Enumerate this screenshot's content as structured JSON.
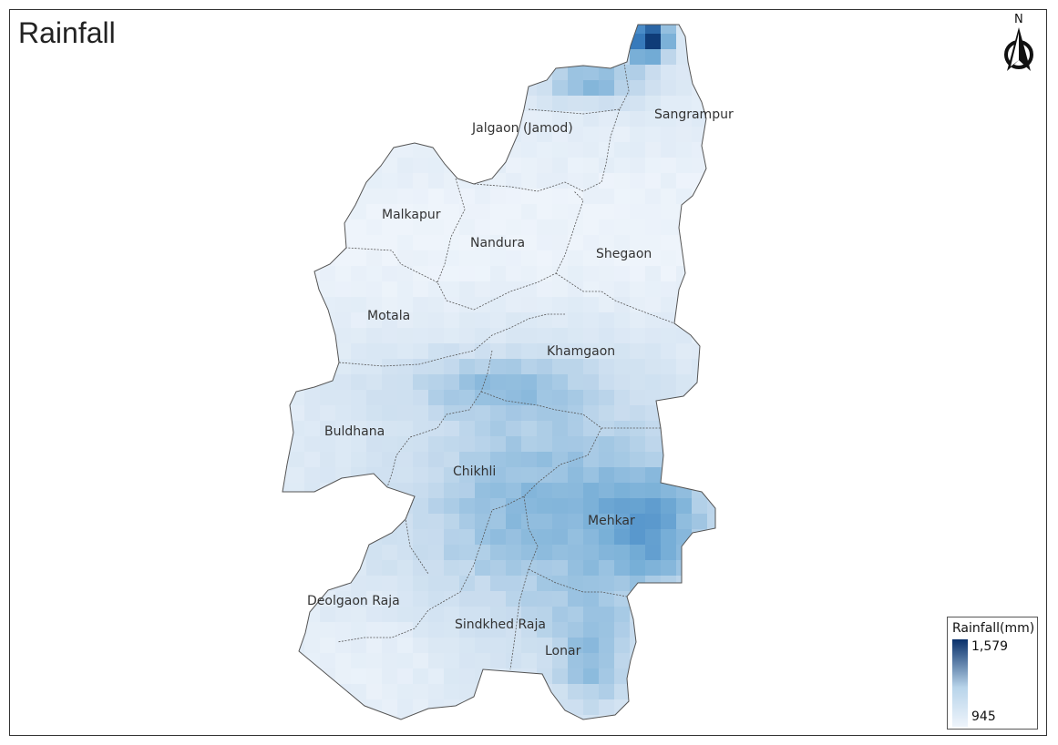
{
  "title": "Rainfall",
  "north_label": "N",
  "legend": {
    "title": "Rainfall(mm)",
    "max": "1,579",
    "min": "945",
    "color_high": "#08306b",
    "color_low": "#eef4fb"
  },
  "districts": [
    {
      "id": "jalgaon",
      "name": "Jalgaon (Jamod)"
    },
    {
      "id": "sangrampur",
      "name": "Sangrampur"
    },
    {
      "id": "malkapur",
      "name": "Malkapur"
    },
    {
      "id": "nandura",
      "name": "Nandura"
    },
    {
      "id": "shegaon",
      "name": "Shegaon"
    },
    {
      "id": "motala",
      "name": "Motala"
    },
    {
      "id": "khamgaon",
      "name": "Khamgaon"
    },
    {
      "id": "buldhana",
      "name": "Buldhana"
    },
    {
      "id": "chikhli",
      "name": "Chikhli"
    },
    {
      "id": "mehkar",
      "name": "Mehkar"
    },
    {
      "id": "deolgaon",
      "name": "Deolgaon Raja"
    },
    {
      "id": "sindkhed",
      "name": "Sindkhed Raja"
    },
    {
      "id": "lonar",
      "name": "Lonar"
    }
  ]
}
